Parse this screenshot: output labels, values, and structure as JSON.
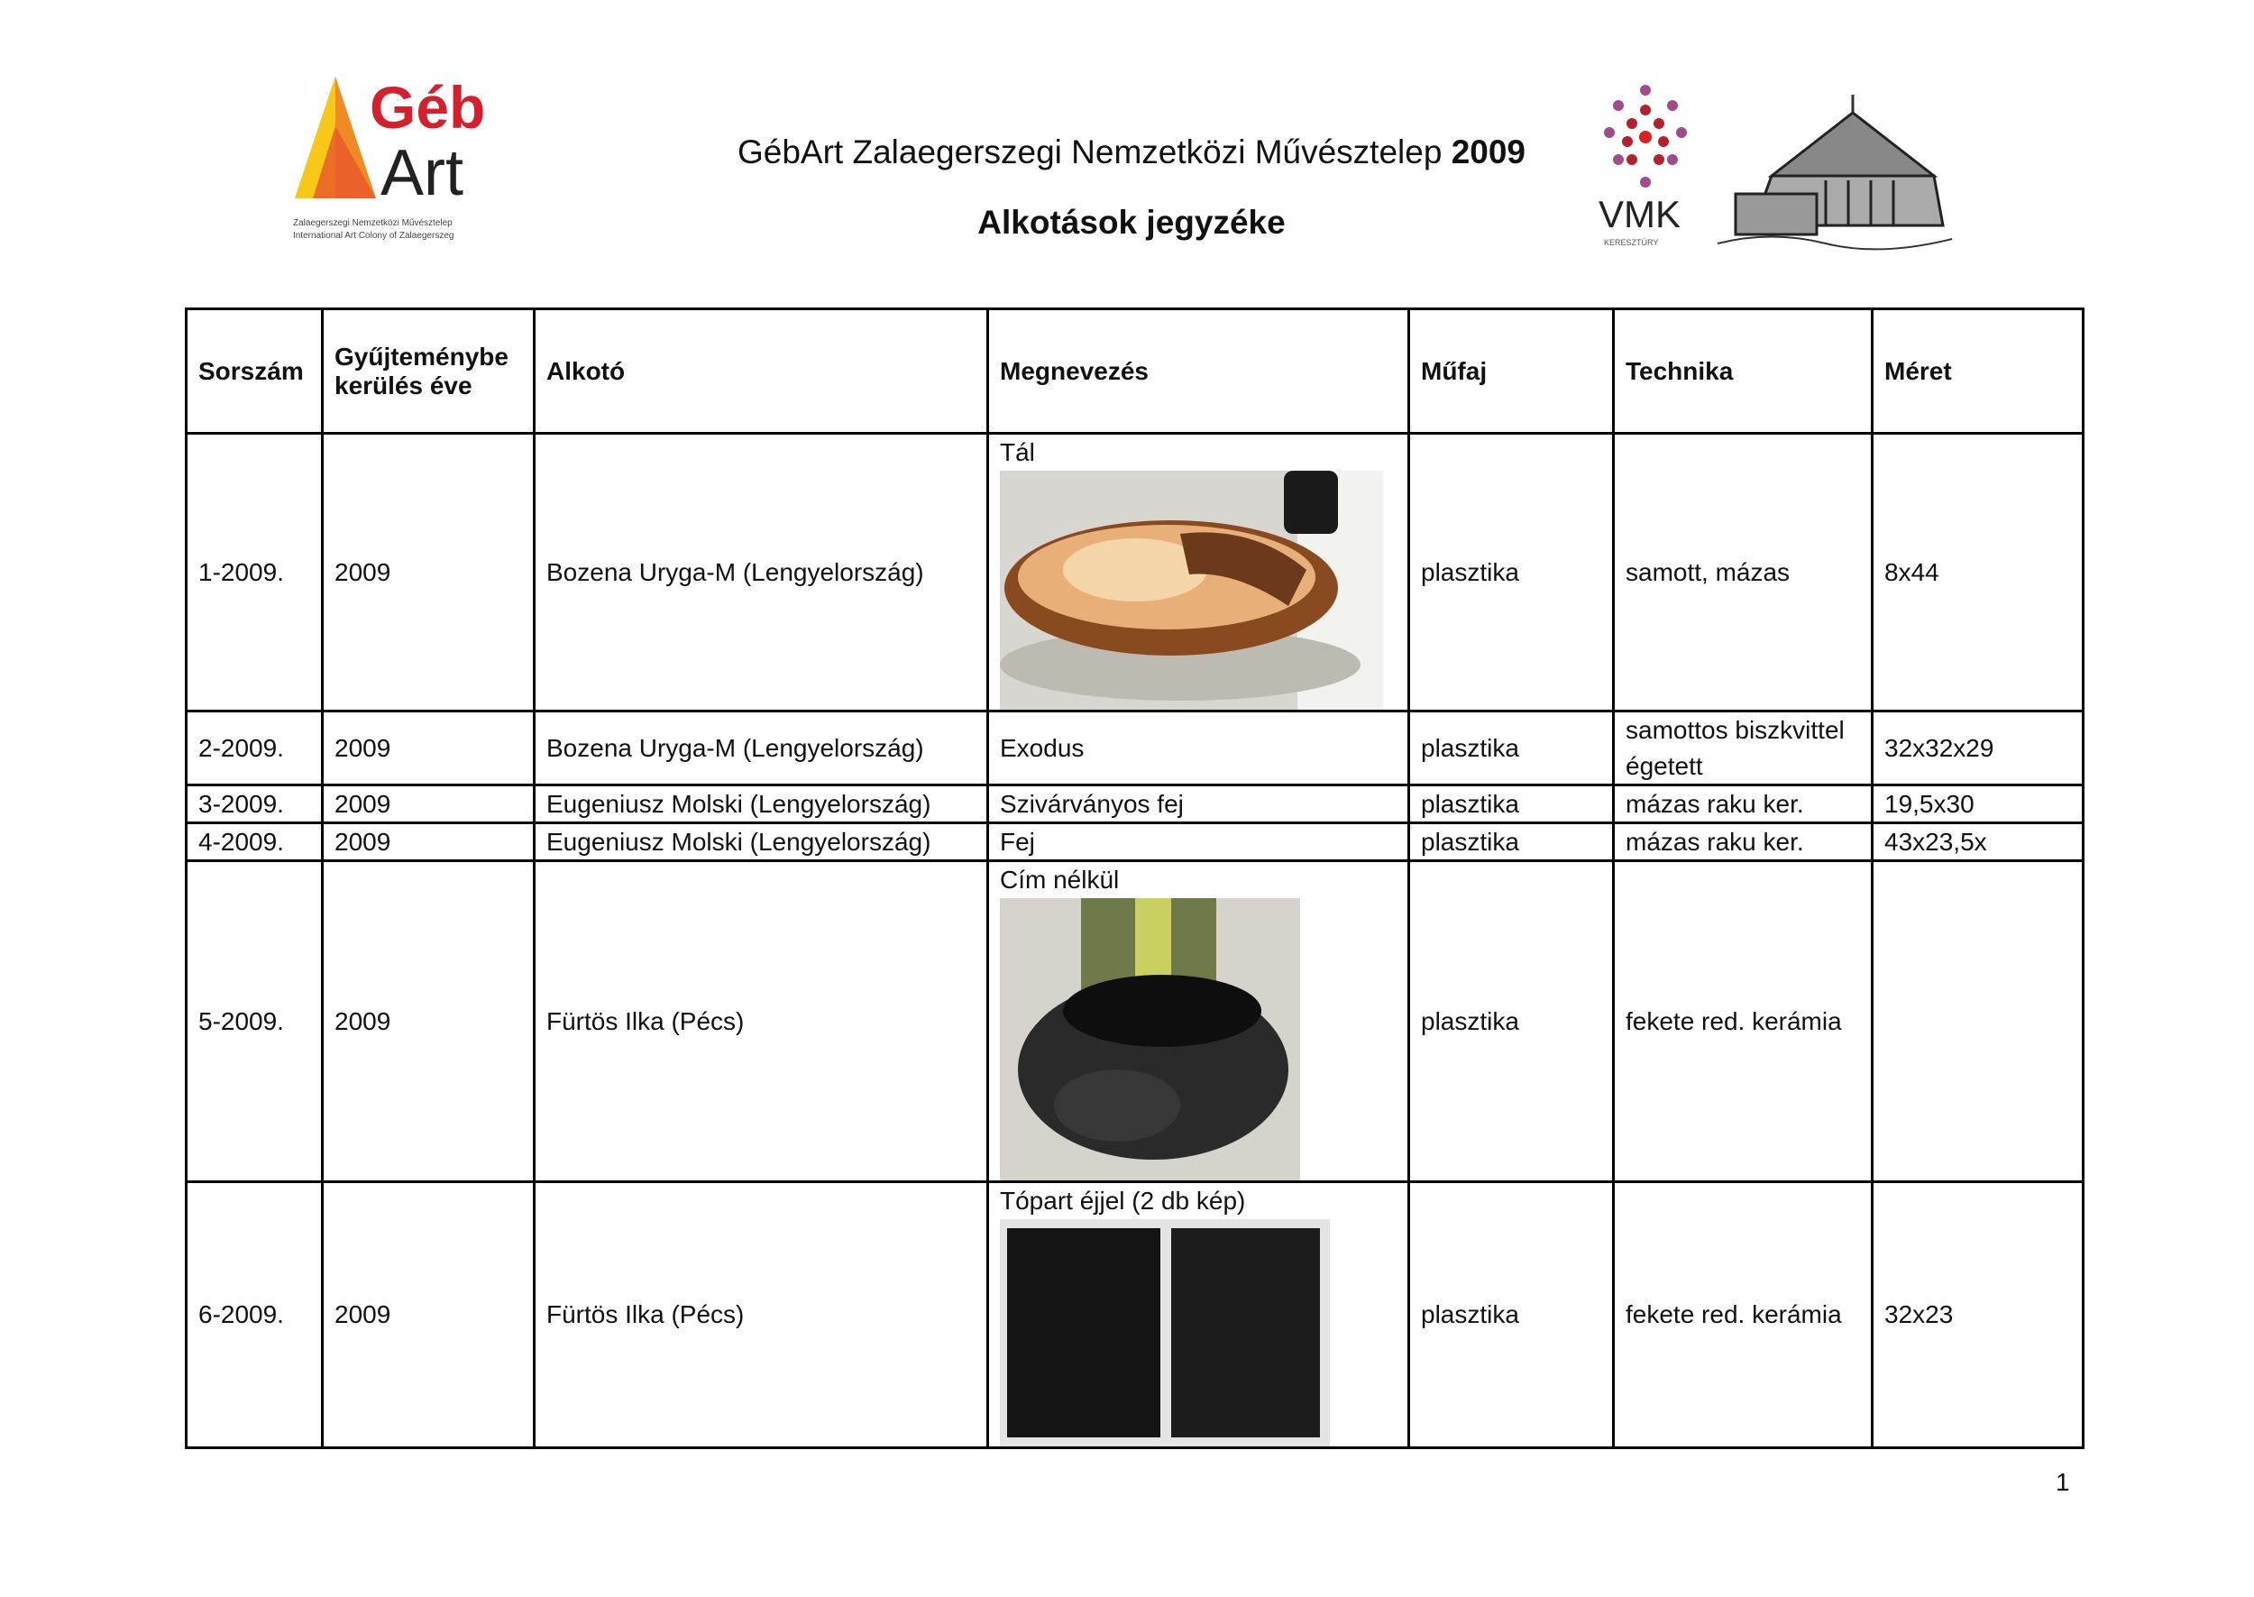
{
  "header": {
    "title_main": "GébArt Zalaegerszegi Nemzetközi Művésztelep",
    "title_year": "2009",
    "subtitle": "Alkotások jegyzéke",
    "logo_left": {
      "text_top": "Géb",
      "text_bottom": "Art",
      "caption_1": "Zalaegerszegi Nemzetközi Művésztelep",
      "caption_2": "International Art Colony of Zalaegerszeg",
      "colors": {
        "red": "#d4202c",
        "orange": "#f08a24",
        "yellow": "#f7c818"
      }
    },
    "logo_right": {
      "text": "VMK",
      "caption": "KERESZTÚRY"
    }
  },
  "table": {
    "columns": [
      "Sorszám",
      "Gyűjteménybe kerülés éve",
      "Alkotó",
      "Megnevezés",
      "Műfaj",
      "Technika",
      "Méret"
    ],
    "rows": [
      {
        "no": "1-2009.",
        "year": "2009",
        "artist": "Bozena Uryga-M (Lengyelország)",
        "title": "Tál",
        "genre": "plasztika",
        "technique": "samott, mázas",
        "size": "8x44",
        "photo": "ceramic-bowl-photo"
      },
      {
        "no": "2-2009.",
        "year": "2009",
        "artist": "Bozena Uryga-M (Lengyelország)",
        "title": "Exodus",
        "genre": "plasztika",
        "technique": "samottos biszkvittel égetett",
        "size": "32x32x29"
      },
      {
        "no": "3-2009.",
        "year": "2009",
        "artist": "Eugeniusz Molski (Lengyelország)",
        "title": "Szivárványos fej",
        "genre": "plasztika",
        "technique": "mázas raku ker.",
        "size": "19,5x30"
      },
      {
        "no": "4-2009.",
        "year": "2009",
        "artist": "Eugeniusz Molski (Lengyelország)",
        "title": "Fej",
        "genre": "plasztika",
        "technique": "mázas raku ker.",
        "size": "43x23,5x"
      },
      {
        "no": "5-2009.",
        "year": "2009",
        "artist": "Fürtös Ilka (Pécs)",
        "title": "Cím nélkül",
        "genre": "plasztika",
        "technique": "fekete red. kerámia",
        "size": "",
        "photo": "black-vessel-photo"
      },
      {
        "no": "6-2009.",
        "year": "2009",
        "artist": "Fürtös Ilka (Pécs)",
        "title": "Tópart éjjel (2 db kép)",
        "genre": "plasztika",
        "technique": "fekete red. kerámia",
        "size": "32x23",
        "photo": "black-panels-photo"
      }
    ]
  },
  "footer": {
    "page_number": "1"
  }
}
